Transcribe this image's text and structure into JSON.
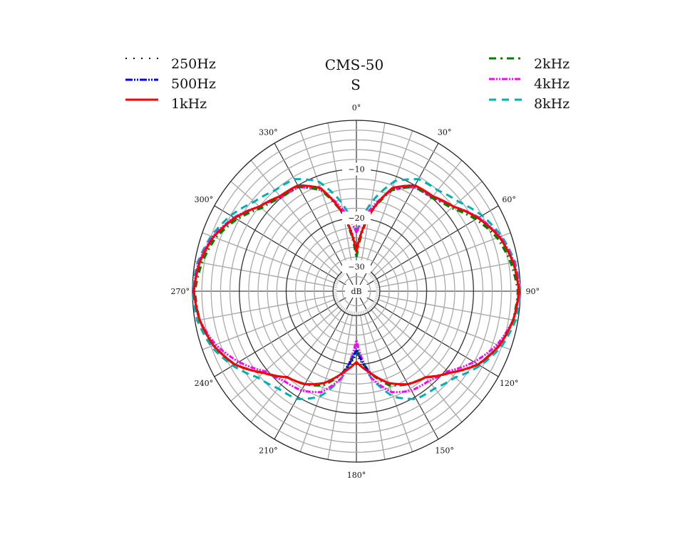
{
  "title": {
    "line1": "CMS-50",
    "line2": "S"
  },
  "center_label": "dB",
  "chart_data": {
    "type": "polar",
    "title": "CMS-50 S",
    "radial_unit": "dB",
    "radial_range": [
      -35,
      0
    ],
    "radial_ticks": [
      {
        "value": -10,
        "label": "−10"
      },
      {
        "value": -20,
        "label": "−20"
      },
      {
        "value": -30,
        "label": "−30"
      }
    ],
    "angle_ticks": [
      {
        "deg": 0,
        "label": "0°"
      },
      {
        "deg": 30,
        "label": "30°"
      },
      {
        "deg": 60,
        "label": "60°"
      },
      {
        "deg": 90,
        "label": "90°"
      },
      {
        "deg": 120,
        "label": "120°"
      },
      {
        "deg": 150,
        "label": "150°"
      },
      {
        "deg": 180,
        "label": "180°"
      },
      {
        "deg": 210,
        "label": "210°"
      },
      {
        "deg": 240,
        "label": "240°"
      },
      {
        "deg": 270,
        "label": "270°"
      },
      {
        "deg": 300,
        "label": "300°"
      },
      {
        "deg": 330,
        "label": "330°"
      }
    ],
    "grid": true,
    "legend_position": "top-left and top-right",
    "angles": [
      0,
      10,
      20,
      30,
      40,
      50,
      60,
      70,
      80,
      90,
      100,
      110,
      120,
      130,
      140,
      150,
      160,
      170,
      180
    ],
    "series": [
      {
        "name": "250Hz",
        "color": "#000000",
        "dash": "dotted",
        "values": [
          -26,
          -19,
          -12.5,
          -10,
          -9.6,
          -8,
          -5,
          -2.5,
          -1,
          -0.3,
          -1,
          -2.5,
          -5,
          -9,
          -12,
          -13,
          -15,
          -18,
          -22
        ]
      },
      {
        "name": "500Hz",
        "color": "#0000ff",
        "dash": "dash-dot-dot",
        "values": [
          -27,
          -19,
          -12.5,
          -10,
          -9.6,
          -8,
          -5,
          -2.5,
          -1,
          -0.3,
          -1,
          -2.5,
          -5,
          -9,
          -12,
          -13,
          -15,
          -18,
          -23
        ]
      },
      {
        "name": "1kHz",
        "color": "#ff0000",
        "dash": "solid",
        "values": [
          -27,
          -19,
          -12.5,
          -10,
          -9.6,
          -8,
          -5,
          -2.5,
          -1,
          -0.3,
          -1,
          -2.5,
          -5,
          -9,
          -12,
          -13,
          -15,
          -18,
          -20.5
        ]
      },
      {
        "name": "2kHz",
        "color": "#008000",
        "dash": "dash-dot",
        "values": [
          -28,
          -19,
          -13,
          -10.3,
          -10,
          -8.5,
          -5.5,
          -3,
          -1.5,
          -0.5,
          -1,
          -2.5,
          -5,
          -9,
          -12,
          -13,
          -14.5,
          -18,
          -23
        ]
      },
      {
        "name": "4kHz",
        "color": "#ff00ff",
        "dash": "dash-dot-dot",
        "values": [
          -23,
          -18,
          -13,
          -10.4,
          -10,
          -8,
          -4.8,
          -2.3,
          -0.8,
          -0.2,
          -1,
          -3,
          -6,
          -9.5,
          -11,
          -11.5,
          -13,
          -17,
          -25
        ]
      },
      {
        "name": "8kHz",
        "color": "#00b0b0",
        "dash": "dashed",
        "values": [
          -23,
          -16.5,
          -11,
          -8.5,
          -8,
          -6.5,
          -4,
          -2,
          -0.6,
          0,
          -0.5,
          -2,
          -4.5,
          -7.5,
          -9,
          -9.5,
          -12,
          -17,
          -24
        ]
      }
    ]
  },
  "legend": {
    "left": [
      {
        "label": "250Hz",
        "color": "#000000",
        "dash": "2,9",
        "width": 2
      },
      {
        "label": "500Hz",
        "color": "#0000ff",
        "dash": "10,2,2,2,2,2",
        "width": 3
      },
      {
        "label": "1kHz",
        "color": "#ff0000",
        "dash": "",
        "width": 3
      }
    ],
    "right": [
      {
        "label": "2kHz",
        "color": "#008000",
        "dash": "10,6,3,6",
        "width": 3
      },
      {
        "label": "4kHz",
        "color": "#ff00ff",
        "dash": "8,2,2,2,2,2",
        "width": 3
      },
      {
        "label": "8kHz",
        "color": "#00b0b0",
        "dash": "10,8",
        "width": 3
      }
    ]
  }
}
